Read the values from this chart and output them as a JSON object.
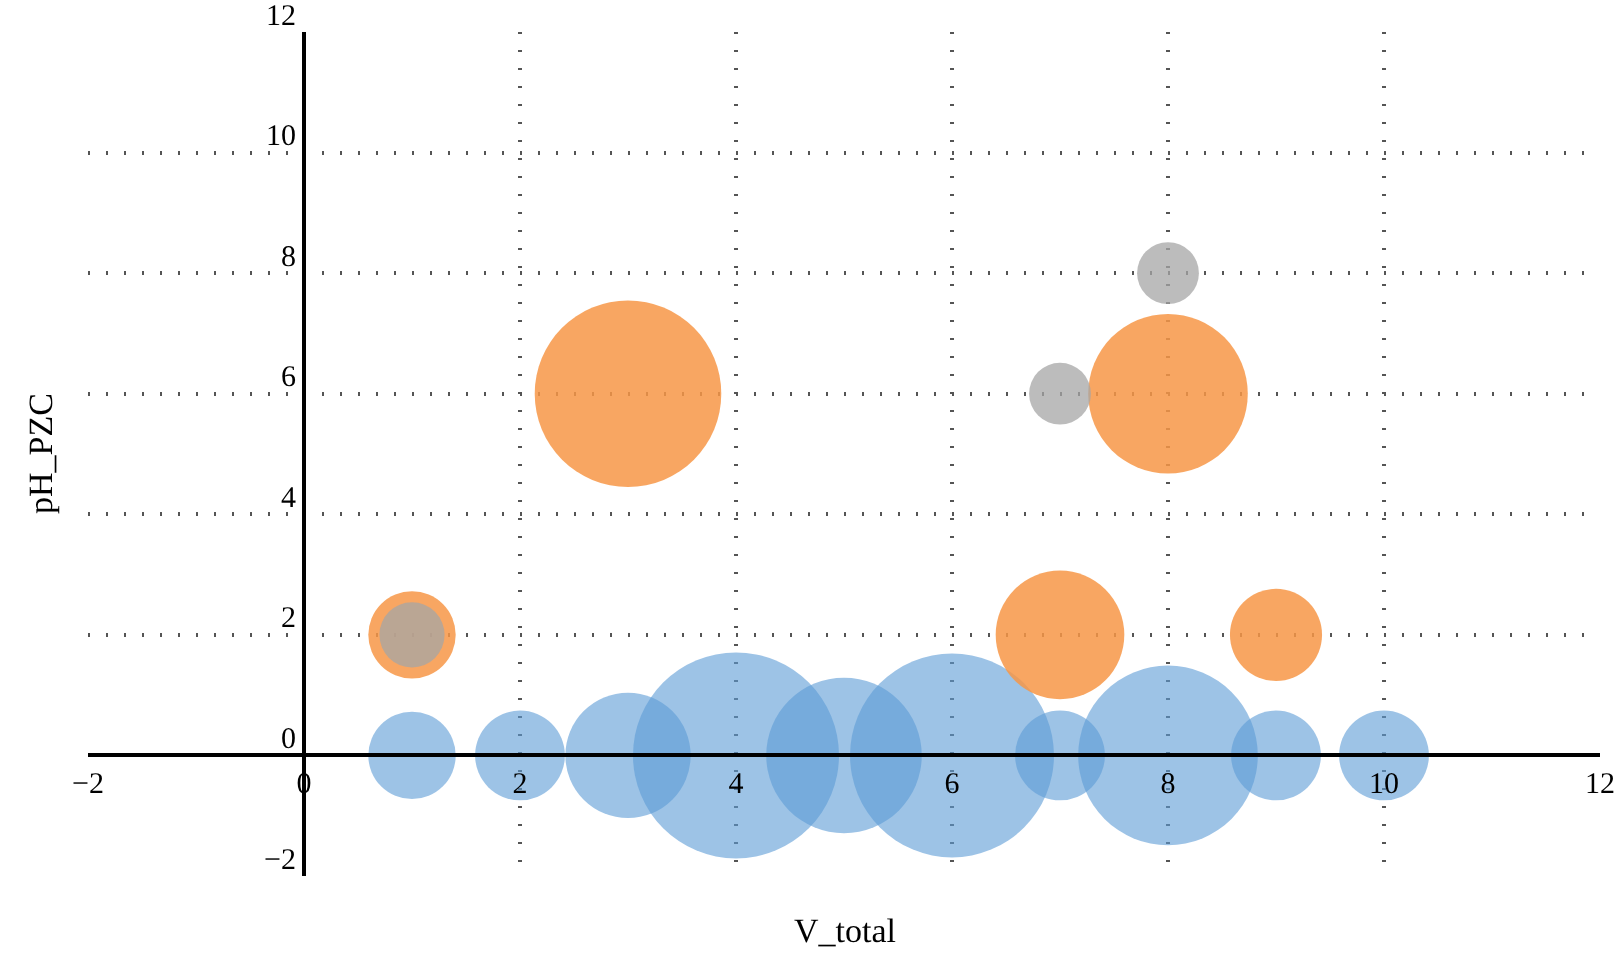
{
  "chart_data": {
    "type": "bubble",
    "xlabel": "V_total",
    "ylabel": "pH_PZC",
    "xlim": [
      -2,
      12
    ],
    "xticks": [
      -2,
      0,
      2,
      4,
      6,
      8,
      10,
      12
    ],
    "ylim": [
      -2,
      12
    ],
    "yticks": [
      -2,
      0,
      2,
      4,
      6,
      8,
      10,
      12
    ],
    "grid": true,
    "series": [
      {
        "color": "#5b9bd5",
        "x": [
          1,
          2,
          3,
          4,
          5,
          6,
          7,
          8,
          9,
          10
        ],
        "values": [
          0,
          0,
          0,
          0,
          0,
          0,
          0,
          0,
          0,
          0
        ],
        "sizes": [
          0.18,
          0.19,
          0.37,
          1,
          0.57,
          0.98,
          0.19,
          0.76,
          0.19,
          0.19
        ]
      },
      {
        "color": "#f79646",
        "x": [
          1,
          3,
          7,
          8,
          9
        ],
        "values": [
          2,
          6,
          2,
          6,
          2
        ],
        "sizes": [
          0.18,
          0.82,
          0.39,
          0.6,
          0.2
        ]
      },
      {
        "color": "#a5a5a5",
        "x": [
          1,
          7,
          8
        ],
        "values": [
          2,
          6,
          8
        ],
        "sizes": [
          0.1,
          0.09,
          0.09
        ]
      }
    ]
  }
}
